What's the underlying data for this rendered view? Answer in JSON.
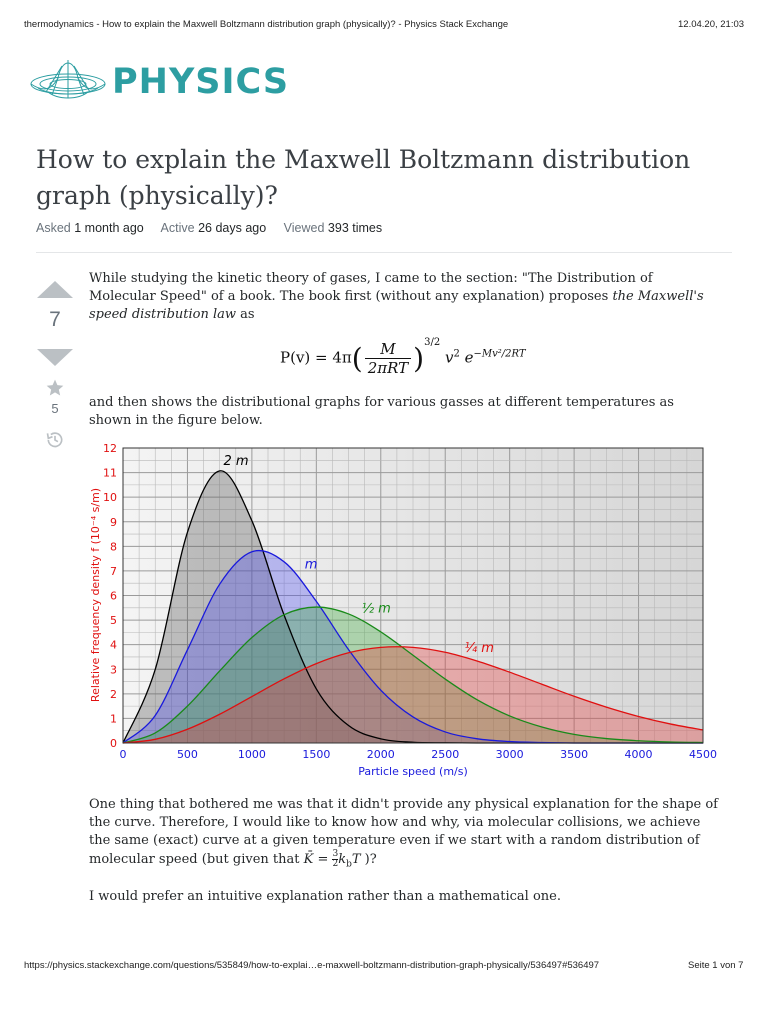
{
  "browser_header": {
    "page_title": "thermodynamics - How to explain the Maxwell Boltzmann distribution graph (physically)? - Physics Stack Exchange",
    "datetime": "12.04.20, 21:03"
  },
  "site": {
    "logo_text": "PHYSICS",
    "brand_color": "#2d9ea2"
  },
  "question": {
    "title": "How to explain the Maxwell Boltzmann distribution graph (physically)?",
    "meta": {
      "asked_label": "Asked",
      "asked_value": "1 month ago",
      "active_label": "Active",
      "active_value": "26 days ago",
      "viewed_label": "Viewed",
      "viewed_value": "393 times"
    },
    "votes": {
      "score": "7",
      "favorites": "5",
      "icons": [
        "upvote-arrow-icon",
        "downvote-arrow-icon",
        "star-icon",
        "history-icon"
      ]
    },
    "body": {
      "p1_a": "While studying the kinetic theory of gases, I came to the section: \"The Distribution of Molecular Speed\" of a book. The book first (without any explanation) proposes ",
      "p1_em": "the Maxwell's speed distribution law",
      "p1_b": " as",
      "formula": {
        "lhs": "P(v) = 4π",
        "num": "M",
        "den": "2πRT",
        "exp": "3/2",
        "v2": "v",
        "sq": "2",
        "e": "e",
        "e_exp": "−Mv²/2RT"
      },
      "p2": "and then shows the distributional graphs for various gasses at different temperatures as shown in the figure below.",
      "p3_a": "One thing that bothered me was that it didn't provide any physical explanation for the shape of the curve. Therefore, I would like to know how and why, via molecular collisions, we achieve the same (exact) curve at a given temperature even if we start with a random distribution of molecular speed (but given that ",
      "p3_k": "K̄ = ",
      "p3_fn": "3",
      "p3_fd": "2",
      "p3_kt": "k",
      "p3_kb": "b",
      "p3_T": "T",
      "p3_b": " )?",
      "p4": "I would prefer an intuitive explanation rather than a mathematical one."
    }
  },
  "chart_data": {
    "type": "area",
    "xlabel": "Particle speed (m/s)",
    "ylabel": "Relative frequency density f (10⁻⁴ s/m)",
    "xlim": [
      0,
      4500
    ],
    "ylim": [
      0,
      12
    ],
    "xticks": [
      "0",
      "500",
      "1000",
      "1500",
      "2000",
      "2500",
      "3000",
      "3500",
      "4000",
      "4500"
    ],
    "yticks": [
      "0",
      "1",
      "2",
      "3",
      "4",
      "5",
      "6",
      "7",
      "8",
      "9",
      "10",
      "11",
      "12"
    ],
    "grid": true,
    "x": [
      0,
      250,
      500,
      750,
      1000,
      1250,
      1500,
      1750,
      2000,
      2250,
      2500,
      2750,
      3000,
      3250,
      3500,
      3750,
      4000,
      4250,
      4500
    ],
    "series": [
      {
        "name": "2 m",
        "color": "#000000",
        "fill": "rgba(90,90,90,0.35)",
        "values": [
          0,
          2.99,
          8.57,
          11.07,
          9.04,
          5.2,
          2.2,
          0.71,
          0.17,
          0.03,
          0.01,
          0,
          0,
          0,
          0,
          0,
          0,
          0,
          0
        ]
      },
      {
        "name": "m",
        "color": "#1a1adc",
        "fill": "rgba(80,80,240,0.35)",
        "values": [
          0,
          1.12,
          3.79,
          6.46,
          7.78,
          7.37,
          5.76,
          3.8,
          2.15,
          1.06,
          0.45,
          0.17,
          0.06,
          0.02,
          0,
          0,
          0,
          0,
          0
        ]
      },
      {
        "name": "½ m",
        "color": "#1a8a1a",
        "fill": "rgba(60,170,60,0.35)",
        "values": [
          0,
          0.41,
          1.5,
          2.93,
          4.29,
          5.22,
          5.53,
          5.25,
          4.52,
          3.57,
          2.6,
          1.75,
          1.1,
          0.65,
          0.35,
          0.18,
          0.09,
          0.04,
          0.02
        ]
      },
      {
        "name": "¼ m",
        "color": "#e01010",
        "fill": "rgba(230,60,60,0.35)",
        "values": [
          0,
          0.15,
          0.56,
          1.17,
          1.89,
          2.61,
          3.23,
          3.67,
          3.89,
          3.89,
          3.69,
          3.33,
          2.88,
          2.39,
          1.9,
          1.46,
          1.08,
          0.77,
          0.53
        ]
      }
    ],
    "axis_color_y": "#e01010",
    "axis_color_x": "#1a1adc"
  },
  "footer": {
    "url": "https://physics.stackexchange.com/questions/535849/how-to-explai…e-maxwell-boltzmann-distribution-graph-physically/536497#536497",
    "page": "Seite 1 von 7"
  }
}
